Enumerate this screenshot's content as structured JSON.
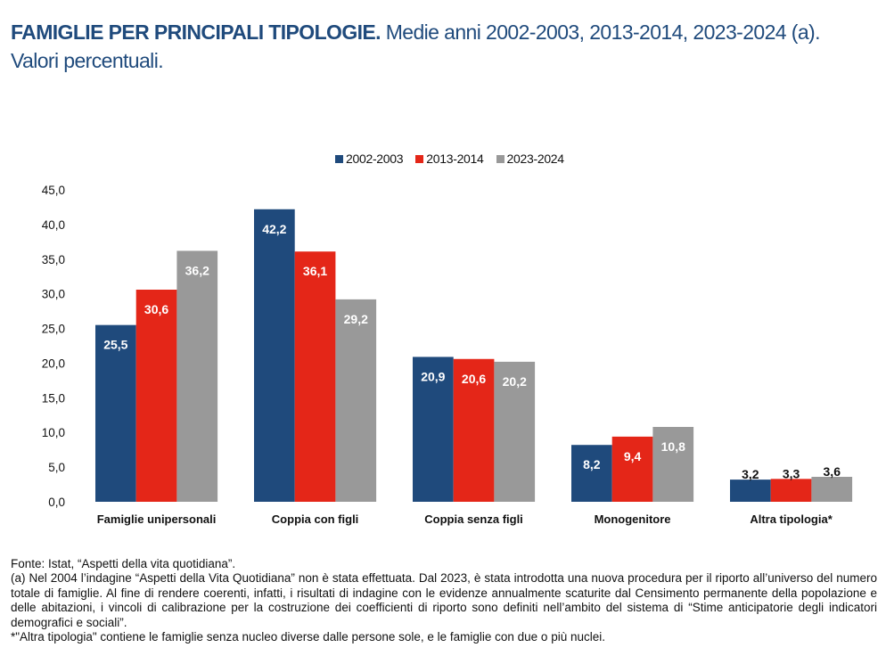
{
  "title": {
    "bold": "FAMIGLIE PER PRINCIPALI TIPOLOGIE.",
    "rest": " Medie anni 2002-2003, 2013-2014, 2023-2024 (a).",
    "line2": "Valori percentuali."
  },
  "colors": {
    "s0": "#1f4a7c",
    "s1": "#e42618",
    "s2": "#999999"
  },
  "chart_data": {
    "type": "bar",
    "title": "FAMIGLIE PER PRINCIPALI TIPOLOGIE. Medie anni 2002-2003, 2013-2014, 2023-2024 (a). Valori percentuali.",
    "xlabel": "",
    "ylabel": "",
    "ylim": [
      0,
      45
    ],
    "yticks": [
      "0,0",
      "5,0",
      "10,0",
      "15,0",
      "20,0",
      "25,0",
      "30,0",
      "35,0",
      "40,0",
      "45,0"
    ],
    "grid": false,
    "legend_position": "top-center",
    "categories": [
      "Famiglie unipersonali",
      "Coppia con figli",
      "Coppia senza figli",
      "Monogenitore",
      "Altra tipologia*"
    ],
    "series": [
      {
        "name": "2002-2003",
        "values": [
          25.5,
          42.2,
          20.9,
          8.2,
          3.2
        ],
        "labels": [
          "25,5",
          "42,2",
          "20,9",
          "8,2",
          "3,2"
        ]
      },
      {
        "name": "2013-2014",
        "values": [
          30.6,
          36.1,
          20.6,
          9.4,
          3.3
        ],
        "labels": [
          "30,6",
          "36,1",
          "20,6",
          "9,4",
          "3,3"
        ]
      },
      {
        "name": "2023-2024",
        "values": [
          36.2,
          29.2,
          20.2,
          10.8,
          3.6
        ],
        "labels": [
          "36,2",
          "29,2",
          "20,2",
          "10,8",
          "3,6"
        ]
      }
    ]
  },
  "legend": {
    "items": [
      "2002-2003",
      "2013-2014",
      "2023-2024"
    ]
  },
  "footer": {
    "source": "Fonte: Istat, “Aspetti della vita quotidiana”.",
    "note_a": "(a) Nel 2004 l’indagine “Aspetti della Vita Quotidiana” non è stata effettuata. Dal 2023, è stata introdotta una nuova procedura per il riporto all’universo del numero totale di famiglie. Al fine di rendere coerenti, infatti, i risultati di indagine con le evidenze annualmente scaturite dal Censimento permanente della popolazione e delle abitazioni, i vincoli di calibrazione per la costruzione dei coefficienti di riporto sono definiti nell’ambito del sistema di “Stime anticipatorie degli indicatori demografici e sociali”.",
    "note_star": "*\"Altra tipologia\" contiene le famiglie senza nucleo diverse dalle persone sole, e le famiglie con due o più nuclei."
  }
}
